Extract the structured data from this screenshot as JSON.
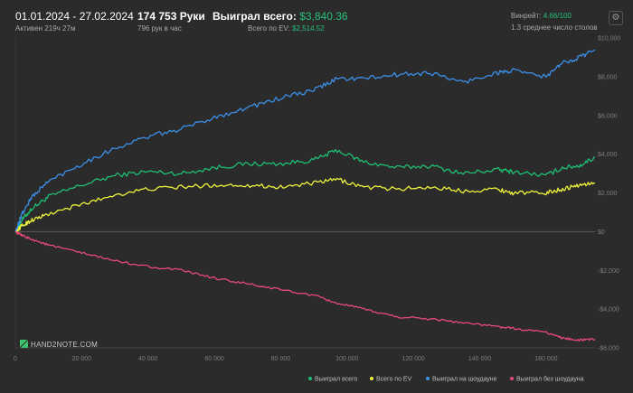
{
  "header": {
    "date_range": "01.01.2024 - 27.02.2024",
    "active_time": "Активен 219ч 27м",
    "hands": "174 753 Руки",
    "hands_per_hour": "796 рук в час",
    "total_won_label": "Выиграл всего:",
    "total_won_value": "$3,840.36",
    "total_ev_label": "Всего по EV:",
    "total_ev_value": "$2,514.52",
    "winrate_label": "Винрейт:",
    "winrate_value": "4.66/100",
    "avg_tables": "1.3 среднее число столов"
  },
  "footer": {
    "logo_text": "HAND2NOTE.COM"
  },
  "colors": {
    "background": "#2b2b2b",
    "won_total": "#1fbf73",
    "ev": "#eef23a",
    "showdown": "#3b8fe6",
    "non_showdown": "#e8497a",
    "accent_green": "#27c27a"
  },
  "chart_data": {
    "type": "line",
    "xlim": [
      0,
      174753
    ],
    "ylim": [
      -6000,
      10000
    ],
    "x_ticks": [
      0,
      20000,
      40000,
      60000,
      80000,
      100000,
      120000,
      140000,
      160000
    ],
    "x_tick_labels": [
      "0",
      "20 000",
      "40 000",
      "60 000",
      "80 000",
      "100 000",
      "120 000",
      "140 000",
      "160 000"
    ],
    "y_ticks": [
      -6000,
      -4000,
      -2000,
      0,
      2000,
      4000,
      6000,
      8000,
      10000
    ],
    "y_tick_labels": [
      "-$6,000",
      "-$4,000",
      "-$2,000",
      "$0",
      "$2,000",
      "$4,000",
      "$6,000",
      "$8,000",
      "$10,000"
    ],
    "x": [
      0,
      2000,
      5000,
      10000,
      20000,
      30000,
      40000,
      50000,
      60000,
      70000,
      80000,
      90000,
      97000,
      105000,
      115000,
      125000,
      135000,
      145000,
      150000,
      160000,
      165000,
      170000,
      174753
    ],
    "series": [
      {
        "name": "Выиграл всего",
        "color": "#1fbf73",
        "values": [
          0,
          600,
          1200,
          1800,
          2400,
          2900,
          3100,
          3000,
          3300,
          3500,
          3500,
          3700,
          4200,
          3600,
          3300,
          3400,
          3000,
          3200,
          3100,
          2900,
          3300,
          3400,
          3840
        ]
      },
      {
        "name": "Всего по EV",
        "color": "#eef23a",
        "values": [
          0,
          300,
          600,
          900,
          1400,
          1900,
          2200,
          2300,
          2400,
          2400,
          2300,
          2500,
          2700,
          2300,
          2200,
          2300,
          2100,
          2200,
          2000,
          2000,
          2200,
          2400,
          2514
        ]
      },
      {
        "name": "Выиграл на шоудауне",
        "color": "#3b8fe6",
        "values": [
          0,
          900,
          1800,
          2600,
          3500,
          4300,
          4900,
          5300,
          5900,
          6400,
          6900,
          7300,
          7900,
          7900,
          8100,
          8200,
          7700,
          8200,
          8300,
          8000,
          8700,
          9000,
          9400
        ]
      },
      {
        "name": "Выиграл без шоудауна",
        "color": "#e8497a",
        "values": [
          0,
          -200,
          -400,
          -700,
          -1100,
          -1500,
          -1800,
          -2000,
          -2400,
          -2700,
          -3000,
          -3300,
          -3700,
          -4000,
          -4400,
          -4500,
          -4700,
          -4900,
          -5000,
          -5200,
          -5500,
          -5600,
          -5560
        ]
      }
    ],
    "legend_position": "bottom-right"
  }
}
